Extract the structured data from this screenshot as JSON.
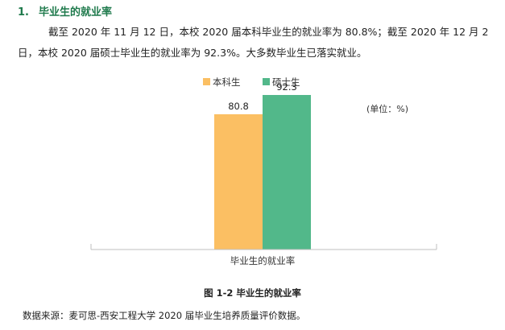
{
  "section": {
    "number": "1.",
    "title": "毕业生的就业率"
  },
  "paragraph": "截至 2020 年 11 月 12 日，本校 2020 届本科毕业生的就业率为 80.8%；截至 2020 年 12 月 2 日，本校 2020 届硕士毕业生的就业率为 92.3%。大多数毕业生已落实就业。",
  "unit_note": "(单位：%)",
  "caption": "图 1-2  毕业生的就业率",
  "source": "数据来源：麦可思-西安工程大学 2020 届毕业生培养质量评价数据。",
  "colors": {
    "heading": "#1f7a4c",
    "undergrad": "#fbbf63",
    "master": "#52b88a",
    "axis": "#bfbfbf"
  },
  "chart_data": {
    "type": "bar",
    "categories": [
      "毕业生的就业率"
    ],
    "series": [
      {
        "name": "本科生",
        "values": [
          80.8
        ],
        "color": "#fbbf63"
      },
      {
        "name": "硕士生",
        "values": [
          92.3
        ],
        "color": "#52b88a"
      }
    ],
    "ylim": [
      0,
      100
    ],
    "legend": "top-center",
    "grid": false,
    "xlabel": "",
    "ylabel": ""
  }
}
